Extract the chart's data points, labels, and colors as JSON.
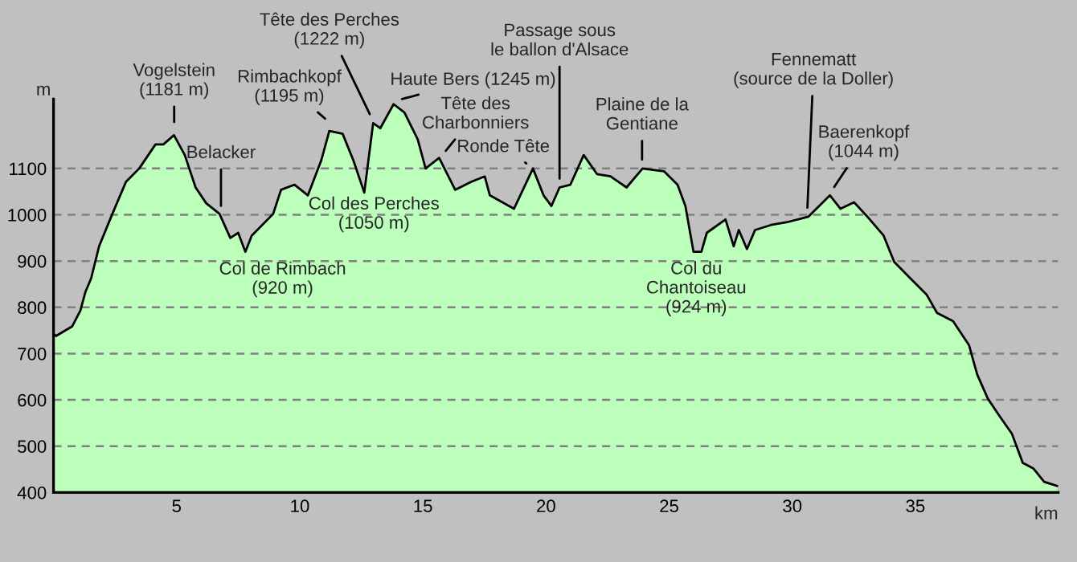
{
  "chart_data": {
    "type": "area",
    "xlabel": "km",
    "ylabel": "m",
    "x": [
      0,
      0.1,
      0.76,
      1.09,
      1.3,
      1.53,
      1.85,
      2.39,
      2.94,
      3.48,
      4.14,
      4.46,
      4.89,
      5.33,
      5.77,
      6.2,
      6.74,
      7.18,
      7.5,
      7.79,
      8.05,
      8.92,
      9.24,
      9.79,
      10.33,
      10.87,
      11.2,
      11.74,
      12.18,
      12.62,
      12.98,
      13.27,
      13.81,
      14.25,
      14.79,
      15.11,
      15.66,
      16.31,
      16.96,
      17.51,
      17.72,
      18.7,
      19.47,
      19.9,
      20.22,
      20.55,
      20.99,
      21.53,
      22.07,
      22.62,
      23.27,
      23.92,
      24.79,
      25.34,
      25.66,
      25.99,
      26.31,
      26.53,
      27.29,
      27.62,
      27.83,
      28.16,
      28.49,
      29.14,
      29.79,
      30.66,
      31.53,
      31.96,
      32.51,
      33.05,
      33.71,
      34.14,
      34.79,
      35.45,
      35.88,
      36.53,
      37.18,
      37.51,
      37.94,
      38.38,
      38.92,
      39.36,
      39.79,
      40.23,
      40.77
    ],
    "series": [
      {
        "color": "#bbffbb",
        "values": [
          743,
          738,
          759,
          793,
          834,
          863,
          932,
          1002,
          1071,
          1100,
          1152,
          1152,
          1172,
          1129,
          1059,
          1025,
          1002,
          950,
          961,
          920,
          955,
          1002,
          1054,
          1065,
          1042,
          1117,
          1181,
          1175,
          1117,
          1048,
          1198,
          1187,
          1239,
          1221,
          1163,
          1100,
          1123,
          1054,
          1071,
          1083,
          1042,
          1013,
          1100,
          1042,
          1019,
          1059,
          1065,
          1129,
          1088,
          1083,
          1059,
          1100,
          1094,
          1065,
          1019,
          920,
          920,
          961,
          990,
          932,
          967,
          926,
          967,
          978,
          984,
          996,
          1042,
          1013,
          1027,
          996,
          955,
          898,
          863,
          828,
          788,
          770,
          718,
          655,
          603,
          568,
          527,
          464,
          452,
          423,
          414
        ]
      }
    ],
    "xlim": [
      0,
      40.8
    ],
    "ylim": [
      400,
      1250
    ],
    "xticks": [
      5,
      10,
      15,
      20,
      25,
      30,
      35
    ],
    "yticks": [
      400,
      500,
      600,
      700,
      800,
      900,
      1000,
      1100
    ],
    "grid": "y",
    "annotations": [
      {
        "text": "Vogelstein\n(1181 m)",
        "x": 4.9,
        "y": 1181
      },
      {
        "text": "Belacker",
        "x": 6.8,
        "y": 1000
      },
      {
        "text": "Col de Rimbach\n(920 m)",
        "x": 7.8,
        "y": 920
      },
      {
        "text": "Rimbachkopf\n(1195 m)",
        "x": 11.3,
        "y": 1195
      },
      {
        "text": "Tête des Perches\n(1222 m)",
        "x": 13.0,
        "y": 1200
      },
      {
        "text": "Haute Bers (1245 m)",
        "x": 13.8,
        "y": 1245
      },
      {
        "text": "Tête des\nCharbonniers",
        "x": 15.7,
        "y": 1123
      },
      {
        "text": "Ronde Tête",
        "x": 19.5,
        "y": 1100
      },
      {
        "text": "Passage sous\nle ballon d'Alsace",
        "x": 20.55,
        "y": 1059
      },
      {
        "text": "Plaine de la\nGentiane",
        "x": 23.9,
        "y": 1100
      },
      {
        "text": "Col du\nChantoiseau\n(924 m)",
        "x": 26.1,
        "y": 924
      },
      {
        "text": "Fennematt\n(source de la Doller)",
        "x": 30.6,
        "y": 996
      },
      {
        "text": "Baerenkopf\n(1044 m)",
        "x": 31.5,
        "y": 1044
      },
      {
        "text": "Col des Perches\n(1050 m)",
        "x": 12.62,
        "y": 1050
      }
    ]
  }
}
